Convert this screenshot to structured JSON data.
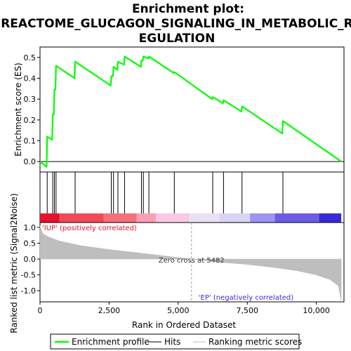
{
  "chart_data": {
    "type": "line",
    "title_lines": [
      "Enrichment plot:",
      "REACTOME_GLUCAGON_SIGNALING_IN_METABOLIC_R",
      "EGULATION"
    ],
    "es_panel": {
      "ylabel": "Enrichment score (ES)",
      "ylim": [
        -0.05,
        0.55
      ],
      "yticks": [
        "0.0",
        "0.1",
        "0.2",
        "0.3",
        "0.4",
        "0.5"
      ],
      "ytick_values": [
        0.0,
        0.1,
        0.2,
        0.3,
        0.4,
        0.5
      ],
      "line_color": "#00ff00",
      "es_points": [
        [
          0,
          0.0
        ],
        [
          240,
          -0.025
        ],
        [
          260,
          0.12
        ],
        [
          440,
          0.105
        ],
        [
          460,
          0.225
        ],
        [
          500,
          0.225
        ],
        [
          520,
          0.345
        ],
        [
          560,
          0.345
        ],
        [
          580,
          0.46
        ],
        [
          1250,
          0.4
        ],
        [
          1270,
          0.48
        ],
        [
          2560,
          0.365
        ],
        [
          2580,
          0.41
        ],
        [
          2640,
          0.41
        ],
        [
          2660,
          0.455
        ],
        [
          2800,
          0.44
        ],
        [
          2820,
          0.48
        ],
        [
          3040,
          0.465
        ],
        [
          3060,
          0.505
        ],
        [
          3650,
          0.455
        ],
        [
          3670,
          0.485
        ],
        [
          3720,
          0.485
        ],
        [
          3740,
          0.505
        ],
        [
          3920,
          0.495
        ],
        [
          3940,
          0.505
        ],
        [
          4840,
          0.425
        ],
        [
          4860,
          0.43
        ],
        [
          6230,
          0.3
        ],
        [
          6250,
          0.31
        ],
        [
          6620,
          0.28
        ],
        [
          6640,
          0.295
        ],
        [
          7290,
          0.24
        ],
        [
          7310,
          0.265
        ],
        [
          8770,
          0.135
        ],
        [
          8790,
          0.195
        ],
        [
          10900,
          0.0
        ]
      ]
    },
    "hits": [
      260,
      460,
      520,
      580,
      1270,
      2580,
      2660,
      2820,
      3060,
      3670,
      3740,
      3940,
      4860,
      6250,
      6640,
      7310,
      8790
    ],
    "heatbar_segments": [
      {
        "from": 0,
        "to": 700,
        "color": "#e8102a"
      },
      {
        "from": 700,
        "to": 2300,
        "color": "#f04a5a"
      },
      {
        "from": 2300,
        "to": 3500,
        "color": "#f4707c"
      },
      {
        "from": 3500,
        "to": 4200,
        "color": "#f7a0b4"
      },
      {
        "from": 4200,
        "to": 5400,
        "color": "#fbc8e6"
      },
      {
        "from": 5400,
        "to": 6500,
        "color": "#e8e0f4"
      },
      {
        "from": 6500,
        "to": 7600,
        "color": "#d8d4f4"
      },
      {
        "from": 7600,
        "to": 8500,
        "color": "#9c94f0"
      },
      {
        "from": 8500,
        "to": 10100,
        "color": "#6c5ce8"
      },
      {
        "from": 10100,
        "to": 10900,
        "color": "#3a28d8"
      }
    ],
    "metric_panel": {
      "ylabel": "Ranked list metric (Signal2Noise)",
      "ylim": [
        -1.35,
        1.15
      ],
      "yticks": [
        "1.0",
        "0.5",
        "0.0",
        "-0.5",
        "-1.0"
      ],
      "ytick_values": [
        1.0,
        0.5,
        0.0,
        -0.5,
        -1.0
      ],
      "fill_color": "#bebebe",
      "metric_points": [
        [
          0,
          1.05
        ],
        [
          100,
          0.8
        ],
        [
          300,
          0.7
        ],
        [
          700,
          0.57
        ],
        [
          1500,
          0.42
        ],
        [
          2500,
          0.3
        ],
        [
          3500,
          0.2
        ],
        [
          4500,
          0.1
        ],
        [
          5482,
          0.0
        ],
        [
          6500,
          -0.1
        ],
        [
          7500,
          -0.17
        ],
        [
          8500,
          -0.27
        ],
        [
          9300,
          -0.37
        ],
        [
          10000,
          -0.5
        ],
        [
          10500,
          -0.65
        ],
        [
          10800,
          -0.85
        ],
        [
          10900,
          -1.35
        ]
      ],
      "pos_label": "'IUP' (positively correlated)",
      "neg_label": "'EP' (negatively correlated)",
      "zero_cross_label": "Zero cross at 5482",
      "zero_cross": 5482
    },
    "xlabel": "Rank in Ordered Dataset",
    "xlim": [
      0,
      11000
    ],
    "xticks": [
      "0",
      "2,500",
      "5,000",
      "7,500",
      "10,000"
    ],
    "xtick_values": [
      0,
      2500,
      5000,
      7500,
      10000
    ],
    "legend": [
      {
        "label": "Enrichment profile",
        "color": "#00ff00",
        "kind": "line"
      },
      {
        "label": "Hits",
        "color": "#000000",
        "kind": "line"
      },
      {
        "label": "Ranking metric scores",
        "color": "#bebebe",
        "kind": "line"
      }
    ]
  }
}
